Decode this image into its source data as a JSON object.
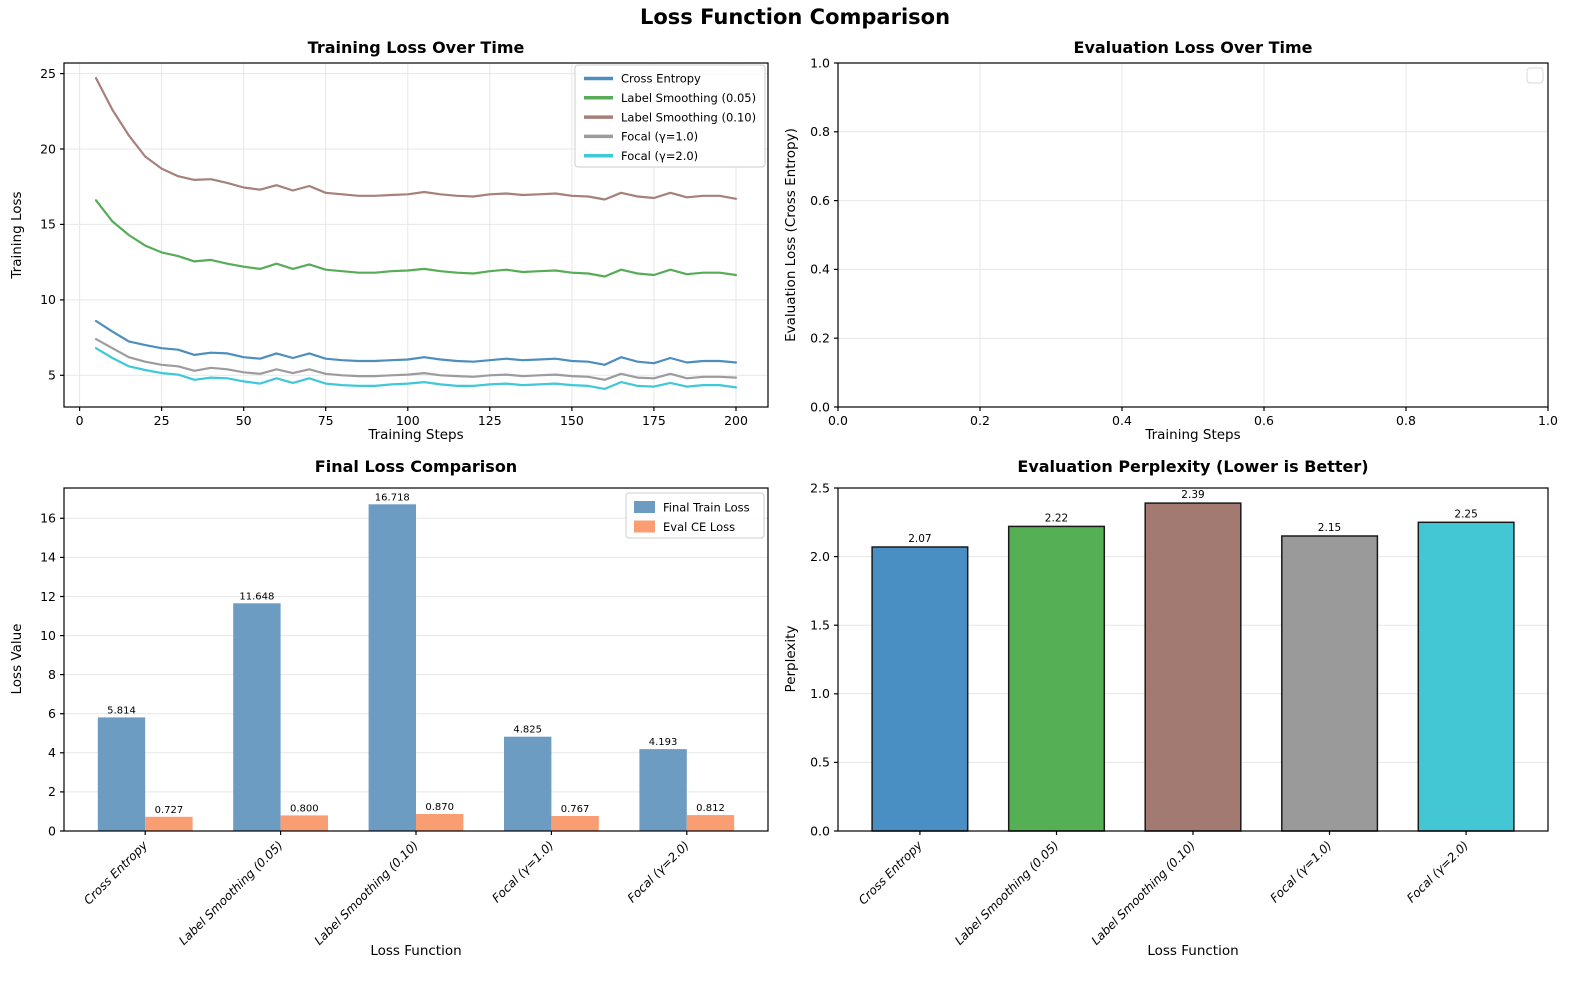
{
  "figure_title": "Loss Function Comparison",
  "style": {
    "grid_color": "#e7e7e7",
    "axis_color": "#000000",
    "legend_border": "#cccccc"
  },
  "chart_data": [
    {
      "id": "training_loss",
      "type": "line",
      "title": "Training Loss Over Time",
      "xlabel": "Training Steps",
      "ylabel": "Training Loss",
      "xlim": [
        -4.75,
        209.75
      ],
      "ylim": [
        2.9,
        25.7
      ],
      "xticks": [
        0,
        25,
        50,
        75,
        100,
        125,
        150,
        175,
        200
      ],
      "xtick_labels": [
        "0",
        "25",
        "50",
        "75",
        "100",
        "125",
        "150",
        "175",
        "200"
      ],
      "yticks": [
        5,
        10,
        15,
        20,
        25
      ],
      "ytick_labels": [
        "5",
        "10",
        "15",
        "20",
        "25"
      ],
      "grid": "both",
      "legend": "lines",
      "x": [
        5,
        10,
        15,
        20,
        25,
        30,
        35,
        40,
        45,
        50,
        55,
        60,
        65,
        70,
        75,
        80,
        85,
        90,
        95,
        100,
        105,
        110,
        115,
        120,
        125,
        130,
        135,
        140,
        145,
        150,
        155,
        160,
        165,
        170,
        175,
        180,
        185,
        190,
        195,
        200
      ],
      "series": [
        {
          "name": "Cross Entropy",
          "color": "#4c8ebe",
          "values": [
            8.6,
            7.9,
            7.25,
            7.0,
            6.8,
            6.7,
            6.35,
            6.5,
            6.45,
            6.2,
            6.1,
            6.45,
            6.15,
            6.45,
            6.1,
            6.0,
            5.95,
            5.95,
            6.0,
            6.05,
            6.2,
            6.05,
            5.95,
            5.9,
            6.0,
            6.1,
            6.0,
            6.05,
            6.1,
            5.95,
            5.9,
            5.7,
            6.2,
            5.9,
            5.8,
            6.15,
            5.85,
            5.95,
            5.95,
            5.85
          ]
        },
        {
          "name": "Label Smoothing (0.05)",
          "color": "#57ad57",
          "values": [
            16.6,
            15.2,
            14.3,
            13.6,
            13.15,
            12.9,
            12.55,
            12.65,
            12.4,
            12.2,
            12.05,
            12.4,
            12.05,
            12.35,
            12.0,
            11.9,
            11.8,
            11.8,
            11.9,
            11.95,
            12.05,
            11.9,
            11.8,
            11.75,
            11.9,
            12.0,
            11.85,
            11.9,
            11.95,
            11.8,
            11.75,
            11.55,
            12.0,
            11.75,
            11.65,
            12.0,
            11.7,
            11.8,
            11.8,
            11.65
          ]
        },
        {
          "name": "Label Smoothing (0.10)",
          "color": "#a6817a",
          "values": [
            24.7,
            22.6,
            20.9,
            19.5,
            18.7,
            18.2,
            17.95,
            18.0,
            17.75,
            17.45,
            17.3,
            17.6,
            17.25,
            17.55,
            17.1,
            17.0,
            16.9,
            16.9,
            16.95,
            17.0,
            17.15,
            17.0,
            16.9,
            16.85,
            17.0,
            17.05,
            16.95,
            17.0,
            17.05,
            16.9,
            16.85,
            16.65,
            17.1,
            16.85,
            16.75,
            17.1,
            16.8,
            16.9,
            16.9,
            16.7
          ]
        },
        {
          "name": "Focal (γ=1.0)",
          "color": "#9c9c9c",
          "values": [
            7.4,
            6.8,
            6.2,
            5.9,
            5.7,
            5.6,
            5.3,
            5.5,
            5.4,
            5.2,
            5.1,
            5.4,
            5.15,
            5.4,
            5.1,
            5.0,
            4.95,
            4.95,
            5.0,
            5.05,
            5.15,
            5.0,
            4.95,
            4.9,
            5.0,
            5.05,
            4.95,
            5.0,
            5.05,
            4.95,
            4.9,
            4.7,
            5.1,
            4.85,
            4.8,
            5.1,
            4.8,
            4.9,
            4.9,
            4.85
          ]
        },
        {
          "name": "Focal (γ=2.0)",
          "color": "#3fc8d8",
          "values": [
            6.8,
            6.15,
            5.6,
            5.35,
            5.15,
            5.05,
            4.7,
            4.85,
            4.8,
            4.6,
            4.45,
            4.8,
            4.5,
            4.8,
            4.45,
            4.35,
            4.3,
            4.3,
            4.4,
            4.45,
            4.55,
            4.4,
            4.3,
            4.3,
            4.4,
            4.45,
            4.35,
            4.4,
            4.45,
            4.35,
            4.3,
            4.1,
            4.55,
            4.3,
            4.25,
            4.5,
            4.25,
            4.35,
            4.35,
            4.2
          ]
        }
      ]
    },
    {
      "id": "eval_loss",
      "type": "line",
      "title": "Evaluation Loss Over Time",
      "xlabel": "Training Steps",
      "ylabel": "Evaluation Loss (Cross Entropy)",
      "xlim": [
        0,
        1
      ],
      "ylim": [
        0,
        1
      ],
      "xticks": [
        0,
        0.2,
        0.4,
        0.6,
        0.8,
        1.0
      ],
      "xtick_labels": [
        "0.0",
        "0.2",
        "0.4",
        "0.6",
        "0.8",
        "1.0"
      ],
      "yticks": [
        0,
        0.2,
        0.4,
        0.6,
        0.8,
        1.0
      ],
      "ytick_labels": [
        "0.0",
        "0.2",
        "0.4",
        "0.6",
        "0.8",
        "1.0"
      ],
      "grid": "both",
      "legend": "empty",
      "x": [],
      "series": []
    },
    {
      "id": "final_loss",
      "type": "grouped_bar",
      "title": "Final Loss Comparison",
      "xlabel": "Loss Function",
      "ylabel": "Loss Value",
      "categories": [
        "Cross Entropy",
        "Label Smoothing (0.05)",
        "Label Smoothing (0.10)",
        "Focal (γ=1.0)",
        "Focal (γ=2.0)"
      ],
      "xlim": [
        -0.6,
        4.6
      ],
      "ylim": [
        0,
        17.55
      ],
      "yticks": [
        0,
        2,
        4,
        6,
        8,
        10,
        12,
        14,
        16
      ],
      "ytick_labels": [
        "0",
        "2",
        "4",
        "6",
        "8",
        "10",
        "12",
        "14",
        "16"
      ],
      "grid": "y",
      "legend": "patches",
      "bar_width": 0.35,
      "series": [
        {
          "name": "Final Train Loss",
          "color": "#6d9cc3",
          "values": [
            5.814,
            11.648,
            16.718,
            4.825,
            4.193
          ]
        },
        {
          "name": "Eval CE Loss",
          "color": "#f99d73",
          "values": [
            0.727,
            0.8,
            0.87,
            0.767,
            0.812
          ]
        }
      ],
      "value_labels": [
        [
          "5.814",
          "11.648",
          "16.718",
          "4.825",
          "4.193"
        ],
        [
          "0.727",
          "0.800",
          "0.870",
          "0.767",
          "0.812"
        ]
      ]
    },
    {
      "id": "perplexity",
      "type": "bar",
      "title": "Evaluation Perplexity (Lower is Better)",
      "xlabel": "Loss Function",
      "ylabel": "Perplexity",
      "categories": [
        "Cross Entropy",
        "Label Smoothing (0.05)",
        "Label Smoothing (0.10)",
        "Focal (γ=1.0)",
        "Focal (γ=2.0)"
      ],
      "xlim": [
        -0.6,
        4.6
      ],
      "ylim": [
        0,
        2.5
      ],
      "yticks": [
        0,
        0.5,
        1.0,
        1.5,
        2.0,
        2.5
      ],
      "ytick_labels": [
        "0.0",
        "0.5",
        "1.0",
        "1.5",
        "2.0",
        "2.5"
      ],
      "grid": "y",
      "legend": "none",
      "bar_width": 0.7,
      "values": [
        2.07,
        2.22,
        2.39,
        2.15,
        2.25
      ],
      "value_labels": [
        "2.07",
        "2.22",
        "2.39",
        "2.15",
        "2.25"
      ],
      "colors": [
        "#4a8fc4",
        "#55b055",
        "#a37a71",
        "#9a9a9a",
        "#43c7d4"
      ],
      "bar_edge_color": "#1a1a1a"
    }
  ]
}
